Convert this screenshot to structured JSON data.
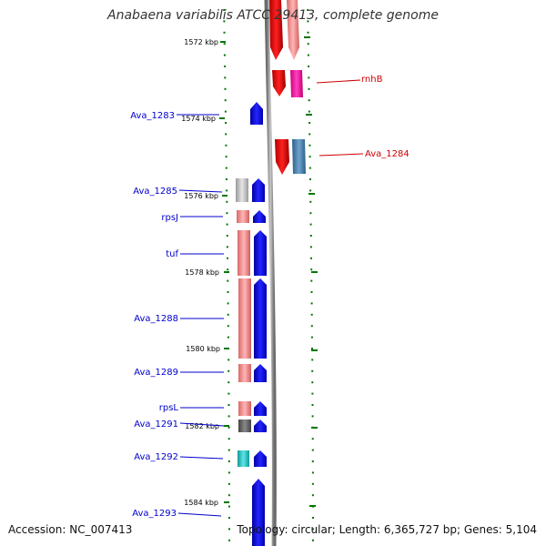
{
  "title": "Anabaena variabilis ATCC 29413, complete genome",
  "accession_text": "Accession: NC_007413",
  "summary_text": "Topology: circular; Length: 6,365,727 bp; Genes: 5,104",
  "colors": {
    "minus_strand": "#ff0000",
    "minus_strand_light": "#f08080",
    "plus_strand": "#0000ff",
    "plus_strand_pink": "#ff1aa3",
    "steel_blue": "#4682b4",
    "grey": "#bdbdbd",
    "dark_grey": "#666666",
    "cyan": "#22c7c7",
    "label_blue": "#0000cc",
    "label_red": "#cc0000",
    "tick_green": "#007700"
  },
  "ruler": {
    "ticks": [
      {
        "label": "1572 kbp"
      },
      {
        "label": "1574 kbp"
      },
      {
        "label": "1576 kbp"
      },
      {
        "label": "1578 kbp"
      },
      {
        "label": "1580 kbp"
      },
      {
        "label": "1582 kbp"
      },
      {
        "label": "1584 kbp"
      }
    ]
  },
  "gene_labels": [
    {
      "text": "rnhB",
      "strand": "right"
    },
    {
      "text": "Ava_1283",
      "strand": "left"
    },
    {
      "text": "Ava_1284",
      "strand": "right"
    },
    {
      "text": "Ava_1285",
      "strand": "left"
    },
    {
      "text": "rpsJ",
      "strand": "left"
    },
    {
      "text": "tuf",
      "strand": "left"
    },
    {
      "text": "Ava_1288",
      "strand": "left"
    },
    {
      "text": "Ava_1289",
      "strand": "left"
    },
    {
      "text": "rpsL",
      "strand": "left"
    },
    {
      "text": "Ava_1291",
      "strand": "left"
    },
    {
      "text": "Ava_1292",
      "strand": "left"
    },
    {
      "text": "Ava_1293",
      "strand": "left"
    }
  ]
}
